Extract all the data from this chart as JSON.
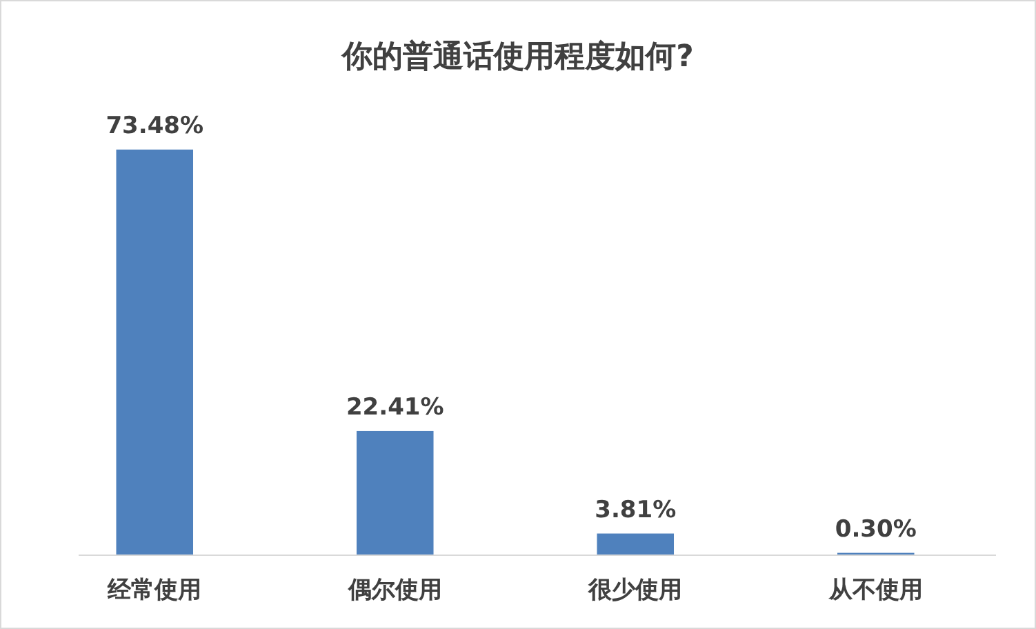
{
  "chart_data": {
    "type": "bar",
    "title": "你的普通话使用程度如何?",
    "categories": [
      "经常使用",
      "偶尔使用",
      "很少使用",
      "从不使用"
    ],
    "values": [
      73.48,
      22.41,
      3.81,
      0.3
    ],
    "value_labels": [
      "73.48%",
      "22.41%",
      "3.81%",
      "0.30%"
    ],
    "color": "#4f81bd"
  }
}
